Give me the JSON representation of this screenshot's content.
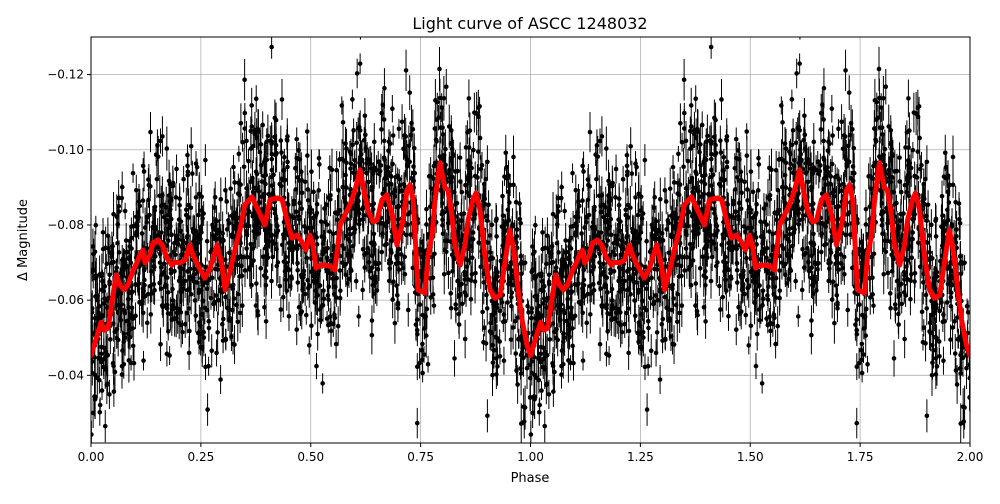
{
  "chart_data": {
    "type": "scatter",
    "title": "Light curve of ASCC 1248032",
    "xlabel": "Phase",
    "ylabel": "Δ Magnitude",
    "xlim": [
      0.0,
      2.0
    ],
    "ylim": [
      -0.13,
      -0.022
    ],
    "y_inverted": true,
    "grid": true,
    "x_ticks": [
      "0.00",
      "0.25",
      "0.50",
      "0.75",
      "1.00",
      "1.25",
      "1.50",
      "1.75",
      "2.00"
    ],
    "y_ticks": [
      "−0.12",
      "−0.10",
      "−0.08",
      "−0.06",
      "−0.04"
    ],
    "y_tick_values": [
      -0.12,
      -0.1,
      -0.08,
      -0.06,
      -0.04
    ],
    "colors": {
      "observations": "#000000",
      "fit": "#ff0000",
      "grid": "#b0b0b0"
    },
    "observations": {
      "marker": "dot with vertical error bar",
      "phase_folded": true
    },
    "fit": {
      "repeats_each_phase": true,
      "x": [
        0.0,
        0.014,
        0.023,
        0.03,
        0.039,
        0.05,
        0.057,
        0.066,
        0.075,
        0.084,
        0.096,
        0.105,
        0.111,
        0.118,
        0.123,
        0.13,
        0.134,
        0.141,
        0.152,
        0.162,
        0.173,
        0.184,
        0.191,
        0.203,
        0.214,
        0.225,
        0.232,
        0.243,
        0.259,
        0.271,
        0.287,
        0.298,
        0.305,
        0.316,
        0.33,
        0.339,
        0.35,
        0.366,
        0.385,
        0.396,
        0.407,
        0.425,
        0.435,
        0.446,
        0.457,
        0.469,
        0.48,
        0.489,
        0.498,
        0.505,
        0.512,
        0.521,
        0.532,
        0.544,
        0.555,
        0.567,
        0.578,
        0.589,
        0.601,
        0.612,
        0.623,
        0.63,
        0.642,
        0.651,
        0.662,
        0.673,
        0.685,
        0.696,
        0.708,
        0.719,
        0.726,
        0.733,
        0.744,
        0.76,
        0.767,
        0.776,
        0.783,
        0.79,
        0.794,
        0.805,
        0.812,
        0.821,
        0.828,
        0.84,
        0.851,
        0.858,
        0.869,
        0.876,
        0.885,
        0.896,
        0.908,
        0.919,
        0.931,
        0.942,
        0.953,
        0.962,
        0.972,
        0.981,
        0.992,
        1.0
      ],
      "y": [
        -0.0453,
        -0.0507,
        -0.0541,
        -0.052,
        -0.0525,
        -0.0613,
        -0.0667,
        -0.064,
        -0.0627,
        -0.064,
        -0.068,
        -0.0701,
        -0.072,
        -0.0733,
        -0.0699,
        -0.0712,
        -0.072,
        -0.0752,
        -0.076,
        -0.0747,
        -0.0712,
        -0.0693,
        -0.0701,
        -0.0699,
        -0.0707,
        -0.0747,
        -0.072,
        -0.0693,
        -0.0659,
        -0.0685,
        -0.0747,
        -0.0693,
        -0.0627,
        -0.0675,
        -0.0747,
        -0.0787,
        -0.0853,
        -0.0875,
        -0.0827,
        -0.08,
        -0.0867,
        -0.0872,
        -0.0867,
        -0.0813,
        -0.0765,
        -0.0773,
        -0.0755,
        -0.0733,
        -0.0773,
        -0.0747,
        -0.0685,
        -0.0693,
        -0.0693,
        -0.0691,
        -0.068,
        -0.08,
        -0.0827,
        -0.0853,
        -0.0893,
        -0.0947,
        -0.088,
        -0.084,
        -0.0808,
        -0.0813,
        -0.0867,
        -0.088,
        -0.0827,
        -0.0747,
        -0.08,
        -0.0893,
        -0.0907,
        -0.0867,
        -0.0627,
        -0.0619,
        -0.072,
        -0.0773,
        -0.0867,
        -0.0933,
        -0.0965,
        -0.0899,
        -0.0893,
        -0.0827,
        -0.0747,
        -0.0693,
        -0.0747,
        -0.0813,
        -0.0867,
        -0.0885,
        -0.084,
        -0.072,
        -0.0627,
        -0.0605,
        -0.0613,
        -0.0701,
        -0.0787,
        -0.0733,
        -0.0627,
        -0.0547,
        -0.048,
        -0.0453
      ]
    }
  }
}
